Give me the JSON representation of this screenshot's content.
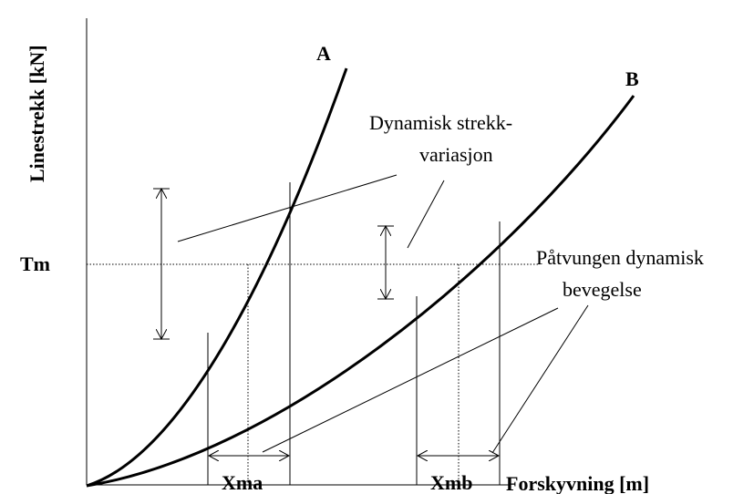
{
  "axis_labels": {
    "y": "Linestrekk [kN]",
    "x": "Forskyvning [m]"
  },
  "curves": {
    "a": "A",
    "b": "B"
  },
  "labels": {
    "tm": "Tm",
    "xma": "Xma",
    "xmb": "Xmb",
    "dynamic_variation": [
      "Dynamisk strekk-",
      "variasjon"
    ],
    "forced_motion": [
      "Påtvungen dynamisk",
      "bevegelse"
    ]
  }
}
